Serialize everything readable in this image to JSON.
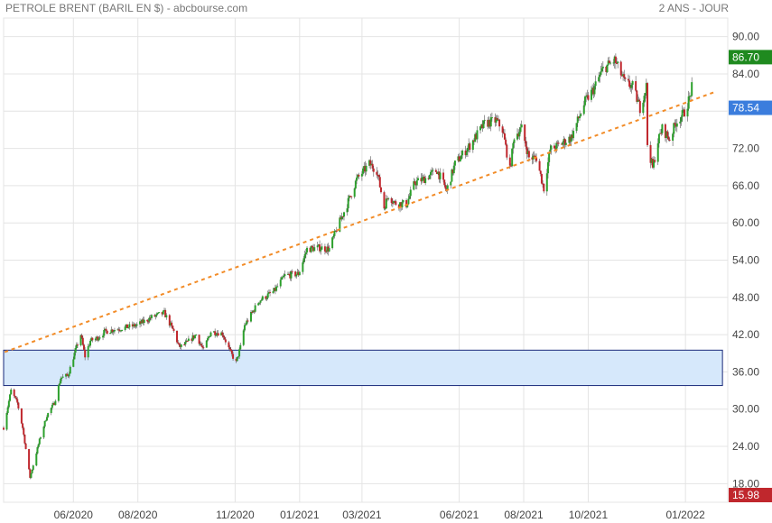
{
  "header": {
    "title": "PETROLE BRENT (BARIL EN $) - abcbourse.com",
    "period": "2 ANS - JOUR"
  },
  "colors": {
    "up": "#2ca02c",
    "down": "#c0272d",
    "trendline": "#f28c28",
    "zone_fill": "#d6e8fb",
    "zone_border": "#1a2a7a",
    "high_tag": "#1f8a1f",
    "last_tag": "#3b7ddd",
    "low_tag": "#c0272d",
    "grid": "#e4e4e4"
  },
  "chart_data": {
    "type": "candlestick",
    "title": "PETROLE BRENT (BARIL EN $)",
    "period": "2 ANS - JOUR",
    "ylim": [
      15.0,
      93.0
    ],
    "y_ticks": [
      "18.00",
      "24.00",
      "30.00",
      "36.00",
      "42.00",
      "48.00",
      "54.00",
      "60.00",
      "66.00",
      "72.00",
      "78.00",
      "84.00",
      "90.00"
    ],
    "x_ticks": [
      {
        "date": "2020-06-01",
        "label": "06/2020"
      },
      {
        "date": "2020-08-01",
        "label": "08/2020"
      },
      {
        "date": "2020-11-01",
        "label": "11/2020"
      },
      {
        "date": "2021-01-01",
        "label": "01/2021"
      },
      {
        "date": "2021-03-01",
        "label": "03/2021"
      },
      {
        "date": "2021-06-01",
        "label": "06/2021"
      },
      {
        "date": "2021-08-01",
        "label": "08/2021"
      },
      {
        "date": "2021-10-01",
        "label": "10/2021"
      },
      {
        "date": "2022-01-01",
        "label": "01/2022"
      }
    ],
    "x_range": [
      "2020-03-27",
      "2022-02-10"
    ],
    "grid": true,
    "price_tags": {
      "high": "86.70",
      "last": "78.54",
      "low": "15.98"
    },
    "support_zone": {
      "low": 33.8,
      "high": 39.5,
      "start": "2020-03-27",
      "end": "2022-02-05"
    },
    "trendline": {
      "start_date": "2020-03-28",
      "start_value": 39.2,
      "end_date": "2022-01-29",
      "end_value": 81.1
    },
    "anchors": [
      [
        "2020-03-27",
        27
      ],
      [
        "2020-04-03",
        33
      ],
      [
        "2020-04-09",
        31
      ],
      [
        "2020-04-14",
        27
      ],
      [
        "2020-04-21",
        19
      ],
      [
        "2020-04-24",
        21
      ],
      [
        "2020-04-30",
        25
      ],
      [
        "2020-05-07",
        29
      ],
      [
        "2020-05-14",
        31
      ],
      [
        "2020-05-20",
        35
      ],
      [
        "2020-05-27",
        35.5
      ],
      [
        "2020-06-03",
        39.5
      ],
      [
        "2020-06-08",
        42
      ],
      [
        "2020-06-12",
        38.5
      ],
      [
        "2020-06-17",
        41
      ],
      [
        "2020-06-24",
        41.5
      ],
      [
        "2020-07-01",
        42.5
      ],
      [
        "2020-07-15",
        43
      ],
      [
        "2020-07-31",
        43.5
      ],
      [
        "2020-08-14",
        44.8
      ],
      [
        "2020-08-26",
        45.5
      ],
      [
        "2020-09-04",
        42.5
      ],
      [
        "2020-09-09",
        40
      ],
      [
        "2020-09-15",
        40.5
      ],
      [
        "2020-09-25",
        42
      ],
      [
        "2020-10-02",
        39.5
      ],
      [
        "2020-10-09",
        42.5
      ],
      [
        "2020-10-20",
        42.2
      ],
      [
        "2020-10-28",
        39
      ],
      [
        "2020-11-02",
        37.5
      ],
      [
        "2020-11-06",
        40
      ],
      [
        "2020-11-10",
        43.5
      ],
      [
        "2020-11-24",
        47.5
      ],
      [
        "2020-12-08",
        49
      ],
      [
        "2020-12-18",
        51.5
      ],
      [
        "2020-12-31",
        51.8
      ],
      [
        "2021-01-08",
        55.8
      ],
      [
        "2021-01-20",
        56
      ],
      [
        "2021-01-29",
        55.8
      ],
      [
        "2021-02-05",
        59
      ],
      [
        "2021-02-15",
        63
      ],
      [
        "2021-02-24",
        67
      ],
      [
        "2021-03-08",
        69.5
      ],
      [
        "2021-03-15",
        68.5
      ],
      [
        "2021-03-22",
        62.5
      ],
      [
        "2021-03-26",
        64.5
      ],
      [
        "2021-04-01",
        63.2
      ],
      [
        "2021-04-12",
        63
      ],
      [
        "2021-04-20",
        66.5
      ],
      [
        "2021-04-30",
        67.2
      ],
      [
        "2021-05-11",
        68.5
      ],
      [
        "2021-05-20",
        65.2
      ],
      [
        "2021-05-28",
        69.5
      ],
      [
        "2021-06-11",
        72.5
      ],
      [
        "2021-06-25",
        76
      ],
      [
        "2021-07-06",
        76.5
      ],
      [
        "2021-07-12",
        75
      ],
      [
        "2021-07-19",
        68.5
      ],
      [
        "2021-07-23",
        74
      ],
      [
        "2021-07-30",
        75.2
      ],
      [
        "2021-08-06",
        70.5
      ],
      [
        "2021-08-13",
        70.5
      ],
      [
        "2021-08-20",
        65.5
      ],
      [
        "2021-08-26",
        71.8
      ],
      [
        "2021-09-03",
        72.5
      ],
      [
        "2021-09-15",
        73.8
      ],
      [
        "2021-09-28",
        79.5
      ],
      [
        "2021-10-06",
        81.5
      ],
      [
        "2021-10-15",
        84.8
      ],
      [
        "2021-10-26",
        86.2
      ],
      [
        "2021-11-05",
        82.5
      ],
      [
        "2021-11-12",
        82
      ],
      [
        "2021-11-19",
        78.5
      ],
      [
        "2021-11-25",
        82
      ],
      [
        "2021-11-26",
        72.7
      ],
      [
        "2021-12-01",
        68.8
      ],
      [
        "2021-12-06",
        73.2
      ],
      [
        "2021-12-10",
        75.2
      ],
      [
        "2021-12-17",
        73.5
      ],
      [
        "2021-12-23",
        76.2
      ],
      [
        "2021-12-31",
        77.8
      ],
      [
        "2022-01-05",
        80.2
      ],
      [
        "2022-01-07",
        81.8
      ]
    ]
  }
}
